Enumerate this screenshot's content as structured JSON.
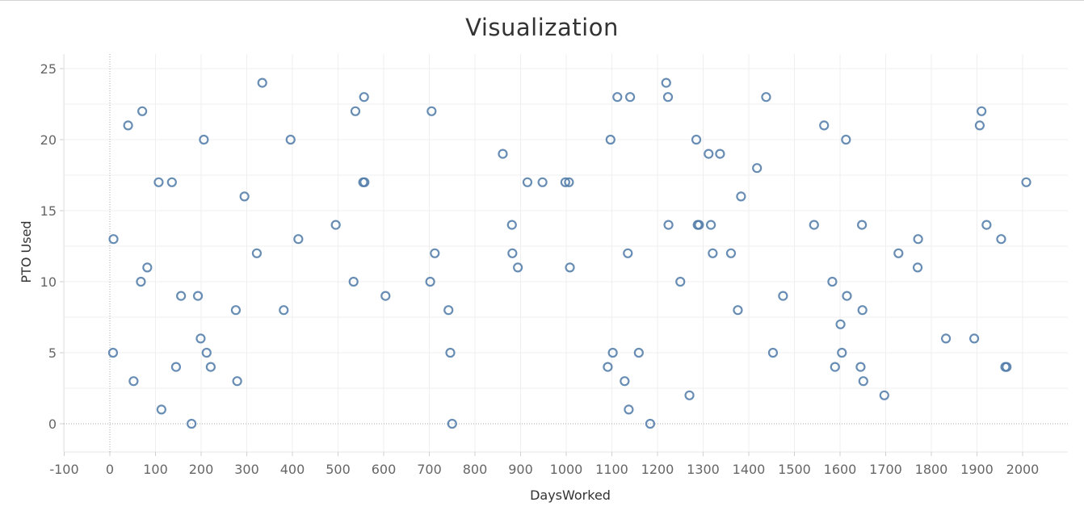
{
  "chart_data": {
    "type": "scatter",
    "title": "Visualization",
    "xlabel": "DaysWorked",
    "ylabel": "PTO Used",
    "xlim": [
      -100,
      2100
    ],
    "ylim": [
      -2,
      26
    ],
    "x_ticks": [
      -100,
      0,
      100,
      200,
      300,
      400,
      500,
      600,
      700,
      800,
      900,
      1000,
      1100,
      1200,
      1300,
      1400,
      1500,
      1600,
      1700,
      1800,
      1900,
      2000
    ],
    "y_ticks": [
      0,
      5,
      10,
      15,
      20,
      25
    ],
    "grid": true,
    "marker": "hollow-circle",
    "color": "#4e79a7",
    "points": [
      {
        "x": 8,
        "y": 13
      },
      {
        "x": 7,
        "y": 5
      },
      {
        "x": 40,
        "y": 21
      },
      {
        "x": 52,
        "y": 3
      },
      {
        "x": 68,
        "y": 10
      },
      {
        "x": 71,
        "y": 22
      },
      {
        "x": 82,
        "y": 11
      },
      {
        "x": 107,
        "y": 17
      },
      {
        "x": 113,
        "y": 1
      },
      {
        "x": 136,
        "y": 17
      },
      {
        "x": 145,
        "y": 4
      },
      {
        "x": 156,
        "y": 9
      },
      {
        "x": 179,
        "y": 0
      },
      {
        "x": 193,
        "y": 9
      },
      {
        "x": 199,
        "y": 6
      },
      {
        "x": 206,
        "y": 20
      },
      {
        "x": 212,
        "y": 5
      },
      {
        "x": 221,
        "y": 4
      },
      {
        "x": 276,
        "y": 8
      },
      {
        "x": 279,
        "y": 3
      },
      {
        "x": 295,
        "y": 16
      },
      {
        "x": 322,
        "y": 12
      },
      {
        "x": 334,
        "y": 24
      },
      {
        "x": 381,
        "y": 8
      },
      {
        "x": 396,
        "y": 20
      },
      {
        "x": 413,
        "y": 13
      },
      {
        "x": 495,
        "y": 14
      },
      {
        "x": 534,
        "y": 10
      },
      {
        "x": 538,
        "y": 22
      },
      {
        "x": 555,
        "y": 17
      },
      {
        "x": 557,
        "y": 23
      },
      {
        "x": 558,
        "y": 17
      },
      {
        "x": 604,
        "y": 9
      },
      {
        "x": 702,
        "y": 10
      },
      {
        "x": 705,
        "y": 22
      },
      {
        "x": 712,
        "y": 12
      },
      {
        "x": 742,
        "y": 8
      },
      {
        "x": 746,
        "y": 5
      },
      {
        "x": 750,
        "y": 0
      },
      {
        "x": 861,
        "y": 19
      },
      {
        "x": 881,
        "y": 14
      },
      {
        "x": 882,
        "y": 12
      },
      {
        "x": 894,
        "y": 11
      },
      {
        "x": 915,
        "y": 17
      },
      {
        "x": 948,
        "y": 17
      },
      {
        "x": 998,
        "y": 17
      },
      {
        "x": 1006,
        "y": 17
      },
      {
        "x": 1008,
        "y": 11
      },
      {
        "x": 1091,
        "y": 4
      },
      {
        "x": 1097,
        "y": 20
      },
      {
        "x": 1102,
        "y": 5
      },
      {
        "x": 1112,
        "y": 23
      },
      {
        "x": 1128,
        "y": 3
      },
      {
        "x": 1135,
        "y": 12
      },
      {
        "x": 1137,
        "y": 1
      },
      {
        "x": 1140,
        "y": 23
      },
      {
        "x": 1159,
        "y": 5
      },
      {
        "x": 1184,
        "y": 0
      },
      {
        "x": 1219,
        "y": 24
      },
      {
        "x": 1223,
        "y": 23
      },
      {
        "x": 1224,
        "y": 14
      },
      {
        "x": 1250,
        "y": 10
      },
      {
        "x": 1270,
        "y": 2
      },
      {
        "x": 1285,
        "y": 20
      },
      {
        "x": 1288,
        "y": 14
      },
      {
        "x": 1291,
        "y": 14
      },
      {
        "x": 1312,
        "y": 19
      },
      {
        "x": 1317,
        "y": 14
      },
      {
        "x": 1321,
        "y": 12
      },
      {
        "x": 1337,
        "y": 19
      },
      {
        "x": 1361,
        "y": 12
      },
      {
        "x": 1376,
        "y": 8
      },
      {
        "x": 1383,
        "y": 16
      },
      {
        "x": 1418,
        "y": 18
      },
      {
        "x": 1438,
        "y": 23
      },
      {
        "x": 1453,
        "y": 5
      },
      {
        "x": 1475,
        "y": 9
      },
      {
        "x": 1543,
        "y": 14
      },
      {
        "x": 1565,
        "y": 21
      },
      {
        "x": 1583,
        "y": 10
      },
      {
        "x": 1589,
        "y": 4
      },
      {
        "x": 1601,
        "y": 7
      },
      {
        "x": 1604,
        "y": 5
      },
      {
        "x": 1613,
        "y": 20
      },
      {
        "x": 1615,
        "y": 9
      },
      {
        "x": 1645,
        "y": 4
      },
      {
        "x": 1648,
        "y": 14
      },
      {
        "x": 1649,
        "y": 8
      },
      {
        "x": 1651,
        "y": 3
      },
      {
        "x": 1697,
        "y": 2
      },
      {
        "x": 1728,
        "y": 12
      },
      {
        "x": 1770,
        "y": 11
      },
      {
        "x": 1771,
        "y": 13
      },
      {
        "x": 1832,
        "y": 6
      },
      {
        "x": 1894,
        "y": 6
      },
      {
        "x": 1906,
        "y": 21
      },
      {
        "x": 1910,
        "y": 22
      },
      {
        "x": 1921,
        "y": 14
      },
      {
        "x": 1953,
        "y": 13
      },
      {
        "x": 1962,
        "y": 4
      },
      {
        "x": 1965,
        "y": 4
      },
      {
        "x": 2008,
        "y": 17
      }
    ]
  }
}
